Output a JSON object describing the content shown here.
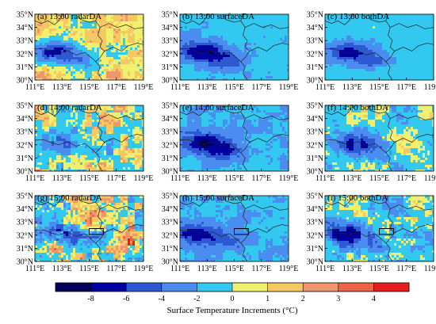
{
  "chart_data": {
    "type": "heatmap",
    "panels": [
      {
        "label": "(a) 13:00 radarDA",
        "time": "13:00",
        "experiment": "radarDA",
        "base": 1,
        "noise": 1.2,
        "blob_min": -7,
        "box": false
      },
      {
        "label": "(d) 14:00 radarDA",
        "time": "14:00",
        "experiment": "radarDA",
        "base": 0.2,
        "noise": 2.0,
        "blob_min": -4,
        "box": false
      },
      {
        "label": "(g) 15:00 radarDA",
        "time": "15:00",
        "experiment": "radarDA",
        "base": 0.4,
        "noise": 2.6,
        "blob_min": -6,
        "box": true
      },
      {
        "label": "(b) 13:00 surfaceDA",
        "time": "13:00",
        "experiment": "surfaceDA",
        "base": -1.4,
        "noise": 0.8,
        "blob_min": -8.5,
        "box": false
      },
      {
        "label": "(e) 14:00 surfaceDA",
        "time": "14:00",
        "experiment": "surfaceDA",
        "base": -1.8,
        "noise": 0.9,
        "blob_min": -8.5,
        "box": false
      },
      {
        "label": "(h) 15:00 surfaceDA",
        "time": "15:00",
        "experiment": "surfaceDA",
        "base": -1.6,
        "noise": 1.0,
        "blob_min": -8,
        "box": true
      },
      {
        "label": "(c) 13:00 bothDA",
        "time": "13:00",
        "experiment": "bothDA",
        "base": -0.9,
        "noise": 0.7,
        "blob_min": -7.5,
        "box": false
      },
      {
        "label": "(f) 14:00 bothDA",
        "time": "14:00",
        "experiment": "bothDA",
        "base": -0.6,
        "noise": 1.4,
        "blob_min": -6,
        "box": false
      },
      {
        "label": "(i) 15:00 bothDA",
        "time": "15:00",
        "experiment": "bothDA",
        "base": -0.8,
        "noise": 1.8,
        "blob_min": -7,
        "box": true
      }
    ],
    "lat_ticks": [
      "30°N",
      "31°N",
      "32°N",
      "33°N",
      "34°N",
      "35°N"
    ],
    "lon_ticks": [
      "111°E",
      "113°E",
      "115°E",
      "117°E",
      "119°E"
    ],
    "lat_range": [
      30,
      35
    ],
    "lon_range": [
      111,
      119
    ],
    "colorbar": {
      "boundaries": [
        -10,
        -8,
        -6,
        -4,
        -2,
        0,
        1,
        2,
        3,
        4,
        5
      ],
      "tick_labels": [
        "-8",
        "-6",
        "-4",
        "-2",
        "0",
        "1",
        "2",
        "3",
        "4"
      ],
      "colors": [
        "#00005a",
        "#0000a0",
        "#2d5ad2",
        "#4b8cf0",
        "#32c8f0",
        "#f0f070",
        "#f5c864",
        "#f0966e",
        "#eb6446",
        "#e61e1e"
      ],
      "label": "Surface Temperature Increments (°C)"
    }
  }
}
